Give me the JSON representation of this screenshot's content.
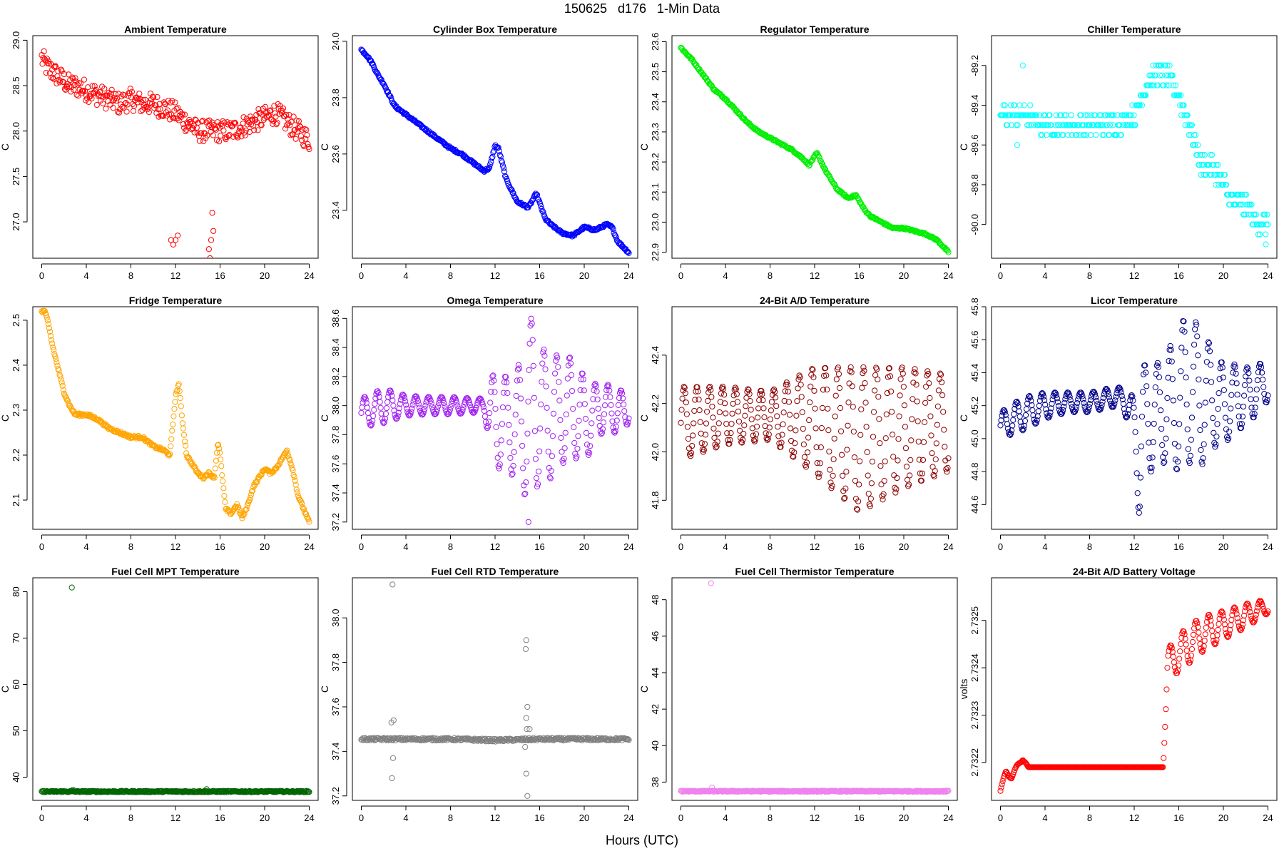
{
  "figure": {
    "title": "150625   d176   1-Min Data",
    "xlabel": "Hours (UTC)"
  },
  "chart_data": [
    {
      "type": "scatter",
      "title": "Ambient Temperature",
      "ylabel": "C",
      "color": "#ff0000",
      "xlim": [
        -0.8,
        24.8
      ],
      "ylim": [
        26.6,
        29.05
      ],
      "x_ticks": [
        0,
        4,
        8,
        12,
        16,
        20,
        24
      ],
      "y_ticks": [
        27.0,
        27.5,
        28.0,
        28.5,
        29.0
      ],
      "x": [
        0,
        0.5,
        1,
        1.5,
        2,
        2.5,
        3,
        4,
        5,
        6,
        7,
        8,
        9,
        10,
        11,
        12,
        13,
        14,
        15,
        16,
        17,
        18,
        19,
        20,
        21,
        22,
        23,
        24
      ],
      "y": [
        28.8,
        28.7,
        28.65,
        28.6,
        28.55,
        28.5,
        28.5,
        28.45,
        28.4,
        28.35,
        28.3,
        28.35,
        28.3,
        28.3,
        28.25,
        28.2,
        28.1,
        28.0,
        28.0,
        28.0,
        28.0,
        28.05,
        28.1,
        28.15,
        28.2,
        28.1,
        28.0,
        27.9
      ],
      "noise": 0.12,
      "outliers": [
        [
          11.6,
          26.8
        ],
        [
          11.8,
          26.75
        ],
        [
          12.0,
          26.8
        ],
        [
          12.2,
          26.85
        ],
        [
          15.0,
          26.7
        ],
        [
          15.2,
          26.8
        ],
        [
          15.3,
          27.1
        ],
        [
          15.4,
          26.9
        ],
        [
          15.1,
          26.6
        ]
      ]
    },
    {
      "type": "scatter",
      "title": "Cylinder Box Temperature",
      "ylabel": "C",
      "color": "#0000ff",
      "xlim": [
        -0.8,
        24.8
      ],
      "ylim": [
        23.23,
        24.02
      ],
      "x_ticks": [
        0,
        4,
        8,
        12,
        16,
        20,
        24
      ],
      "y_ticks": [
        23.4,
        23.6,
        23.8,
        24.0
      ],
      "x": [
        0,
        0.5,
        1,
        1.5,
        2,
        2.5,
        3,
        4,
        5,
        6,
        7,
        8,
        9,
        10,
        11,
        11.5,
        12,
        12.3,
        13,
        14,
        15,
        15.7,
        16.5,
        17,
        18,
        19,
        20,
        21,
        22,
        22.5,
        23,
        24
      ],
      "y": [
        23.97,
        23.95,
        23.92,
        23.88,
        23.85,
        23.81,
        23.77,
        23.74,
        23.71,
        23.68,
        23.65,
        23.62,
        23.6,
        23.57,
        23.54,
        23.55,
        23.63,
        23.62,
        23.51,
        23.43,
        23.41,
        23.46,
        23.37,
        23.35,
        23.32,
        23.31,
        23.34,
        23.33,
        23.35,
        23.34,
        23.29,
        23.25
      ],
      "noise": 0.004,
      "outliers": []
    },
    {
      "type": "scatter",
      "title": "Regulator Temperature",
      "ylabel": "C",
      "color": "#00ee00",
      "xlim": [
        -0.8,
        24.8
      ],
      "ylim": [
        22.88,
        23.62
      ],
      "x_ticks": [
        0,
        4,
        8,
        12,
        16,
        20,
        24
      ],
      "y_ticks": [
        22.9,
        23.0,
        23.1,
        23.2,
        23.3,
        23.4,
        23.5,
        23.6
      ],
      "x": [
        0,
        1,
        2,
        3,
        4,
        5,
        6,
        7,
        8,
        9,
        10,
        11,
        11.5,
        12.2,
        13,
        14,
        15,
        15.7,
        16.5,
        17,
        18,
        19,
        20,
        21,
        22,
        23,
        24
      ],
      "y": [
        23.58,
        23.54,
        23.49,
        23.44,
        23.41,
        23.37,
        23.33,
        23.3,
        23.28,
        23.26,
        23.24,
        23.21,
        23.19,
        23.23,
        23.17,
        23.11,
        23.08,
        23.09,
        23.04,
        23.02,
        23.0,
        22.98,
        22.98,
        22.97,
        22.96,
        22.94,
        22.9
      ],
      "noise": 0.003,
      "outliers": []
    },
    {
      "type": "scatter",
      "title": "Chiller Temperature",
      "ylabel": "C",
      "color": "#00ffff",
      "xlim": [
        -0.8,
        24.8
      ],
      "ylim": [
        -90.17,
        -89.05
      ],
      "x_ticks": [
        0,
        4,
        8,
        12,
        16,
        20,
        24
      ],
      "y_ticks": [
        -90.0,
        -89.8,
        -89.6,
        -89.4,
        -89.2
      ],
      "x": [
        0,
        2,
        4,
        6,
        8,
        10,
        12,
        13,
        14,
        15,
        16,
        17,
        17.5,
        18,
        19,
        20,
        21,
        22,
        23,
        24
      ],
      "y": [
        -89.45,
        -89.45,
        -89.5,
        -89.5,
        -89.5,
        -89.5,
        -89.45,
        -89.3,
        -89.25,
        -89.25,
        -89.35,
        -89.5,
        -89.6,
        -89.7,
        -89.7,
        -89.8,
        -89.9,
        -89.9,
        -90.0,
        -90.0
      ],
      "noise": 0.05,
      "quantum": 0.05,
      "outliers": [
        [
          23.8,
          -90.1
        ],
        [
          2.0,
          -89.2
        ],
        [
          1.5,
          -89.6
        ]
      ]
    },
    {
      "type": "scatter",
      "title": "Fridge Temperature",
      "ylabel": "C",
      "color": "#ffa500",
      "xlim": [
        -0.8,
        24.8
      ],
      "ylim": [
        2.035,
        2.53
      ],
      "x_ticks": [
        0,
        4,
        8,
        12,
        16,
        20,
        24
      ],
      "y_ticks": [
        2.1,
        2.2,
        2.3,
        2.4,
        2.5
      ],
      "x": [
        0,
        0.3,
        0.6,
        1,
        1.5,
        2,
        2.5,
        3,
        4,
        5,
        6,
        7,
        8,
        9,
        10,
        11,
        11.5,
        12,
        12.3,
        12.6,
        13,
        14,
        14.5,
        15,
        15.5,
        15.8,
        16,
        16.5,
        17,
        17.5,
        18,
        18.5,
        19,
        20,
        20.5,
        21,
        22,
        22.5,
        23,
        24
      ],
      "y": [
        2.52,
        2.52,
        2.49,
        2.44,
        2.39,
        2.34,
        2.31,
        2.29,
        2.29,
        2.28,
        2.26,
        2.25,
        2.24,
        2.24,
        2.22,
        2.21,
        2.2,
        2.33,
        2.36,
        2.28,
        2.2,
        2.16,
        2.15,
        2.16,
        2.15,
        2.23,
        2.2,
        2.08,
        2.07,
        2.09,
        2.06,
        2.09,
        2.13,
        2.17,
        2.16,
        2.17,
        2.21,
        2.17,
        2.11,
        2.05
      ],
      "noise": 0.003,
      "outliers": []
    },
    {
      "type": "scatter",
      "title": "Omega Temperature",
      "ylabel": "C",
      "color": "#a020f0",
      "xlim": [
        -0.8,
        24.8
      ],
      "ylim": [
        37.15,
        38.68
      ],
      "x_ticks": [
        0,
        4,
        8,
        12,
        16,
        20,
        24
      ],
      "y_ticks": [
        37.2,
        37.4,
        37.6,
        37.8,
        38.0,
        38.2,
        38.4,
        38.6
      ],
      "x": [
        0,
        2,
        4,
        6,
        8,
        10,
        11,
        12,
        13,
        14,
        15,
        15.5,
        16,
        16.5,
        17,
        18,
        19,
        20,
        21,
        22,
        23,
        24
      ],
      "y": [
        37.95,
        38.0,
        38.0,
        38.0,
        38.0,
        38.0,
        38.0,
        37.9,
        37.9,
        37.85,
        37.95,
        38.0,
        38.0,
        37.9,
        37.95,
        37.95,
        38.0,
        37.9,
        37.95,
        38.0,
        37.95,
        38.0
      ],
      "amp": [
        0.1,
        0.12,
        0.07,
        0.06,
        0.06,
        0.05,
        0.05,
        0.35,
        0.3,
        0.4,
        0.6,
        0.65,
        0.5,
        0.45,
        0.45,
        0.35,
        0.35,
        0.3,
        0.2,
        0.15,
        0.15,
        0.12
      ],
      "noise": 0.0,
      "outliers": [
        [
          15,
          37.2
        ]
      ]
    },
    {
      "type": "scatter",
      "title": "24-Bit A/D Temperature",
      "ylabel": "C",
      "color": "#8b0000",
      "xlim": [
        -0.8,
        24.8
      ],
      "ylim": [
        41.68,
        42.6
      ],
      "x_ticks": [
        0,
        4,
        8,
        12,
        16,
        20,
        24
      ],
      "y_ticks": [
        41.8,
        42.0,
        42.2,
        42.4
      ],
      "x": [
        0,
        4,
        8,
        12,
        16,
        20,
        24
      ],
      "y": [
        42.12,
        42.15,
        42.15,
        42.13,
        42.05,
        42.1,
        42.12
      ],
      "amp": [
        0.15,
        0.12,
        0.1,
        0.22,
        0.3,
        0.25,
        0.2
      ],
      "noise": 0.0,
      "outliers": []
    },
    {
      "type": "scatter",
      "title": "Licor Temperature",
      "ylabel": "C",
      "color": "#00008b",
      "xlim": [
        -0.8,
        24.8
      ],
      "ylim": [
        44.45,
        45.8
      ],
      "x_ticks": [
        0,
        4,
        8,
        12,
        16,
        20,
        24
      ],
      "y_ticks": [
        44.6,
        44.8,
        45.0,
        45.2,
        45.4,
        45.6,
        45.8
      ],
      "x": [
        0,
        2,
        4,
        6,
        8,
        10,
        11,
        12,
        12.5,
        13,
        14,
        15,
        16,
        16.5,
        17,
        18,
        19,
        20,
        21,
        22,
        23,
        24
      ],
      "y": [
        45.08,
        45.15,
        45.2,
        45.22,
        45.22,
        45.25,
        45.25,
        45.1,
        44.95,
        45.1,
        45.15,
        45.2,
        45.2,
        45.3,
        45.3,
        45.25,
        45.25,
        45.2,
        45.25,
        45.25,
        45.3,
        45.35
      ],
      "amp": [
        0.08,
        0.1,
        0.08,
        0.06,
        0.06,
        0.06,
        0.06,
        0.15,
        0.5,
        0.35,
        0.3,
        0.35,
        0.4,
        0.45,
        0.45,
        0.42,
        0.3,
        0.25,
        0.2,
        0.18,
        0.15,
        0.12
      ],
      "noise": 0.0,
      "outliers": []
    },
    {
      "type": "scatter",
      "title": "Fuel Cell MPT Temperature",
      "ylabel": "C",
      "color": "#006400",
      "xlim": [
        -0.8,
        24.8
      ],
      "ylim": [
        35,
        83
      ],
      "x_ticks": [
        0,
        4,
        8,
        12,
        16,
        20,
        24
      ],
      "y_ticks": [
        40,
        50,
        60,
        70,
        80
      ],
      "x": [
        0,
        4,
        8,
        12,
        16,
        20,
        24
      ],
      "y": [
        36.9,
        36.9,
        36.9,
        36.9,
        36.9,
        36.9,
        36.9
      ],
      "noise": 0.15,
      "outliers": [
        [
          2.7,
          80.9
        ],
        [
          2.8,
          37.3
        ],
        [
          14.8,
          37.4
        ]
      ]
    },
    {
      "type": "scatter",
      "title": "Fuel Cell RTD Temperature",
      "ylabel": "C",
      "color": "#808080",
      "xlim": [
        -0.8,
        24.8
      ],
      "ylim": [
        37.18,
        38.18
      ],
      "x_ticks": [
        0,
        4,
        8,
        12,
        16,
        20,
        24
      ],
      "y_ticks": [
        37.2,
        37.4,
        37.6,
        37.8,
        38.0
      ],
      "x": [
        0,
        4,
        8,
        12,
        16,
        20,
        24
      ],
      "y": [
        37.455,
        37.455,
        37.455,
        37.45,
        37.455,
        37.455,
        37.455
      ],
      "noise": 0.006,
      "outliers": [
        [
          2.8,
          38.15
        ],
        [
          2.7,
          37.53
        ],
        [
          2.9,
          37.54
        ],
        [
          2.75,
          37.28
        ],
        [
          2.85,
          37.37
        ],
        [
          14.8,
          37.9
        ],
        [
          14.75,
          37.86
        ],
        [
          14.9,
          37.6
        ],
        [
          14.8,
          37.55
        ],
        [
          14.85,
          37.5
        ],
        [
          14.9,
          37.2
        ],
        [
          14.8,
          37.3
        ],
        [
          15,
          37.45
        ],
        [
          15.1,
          37.5
        ],
        [
          14.7,
          37.42
        ]
      ]
    },
    {
      "type": "scatter",
      "title": "Fuel Cell Thermistor Temperature",
      "ylabel": "C",
      "color": "#ee82ee",
      "xlim": [
        -0.8,
        24.8
      ],
      "ylim": [
        37,
        49.2
      ],
      "x_ticks": [
        0,
        4,
        8,
        12,
        16,
        20,
        24
      ],
      "y_ticks": [
        38,
        40,
        42,
        44,
        46,
        48
      ],
      "x": [
        0,
        4,
        8,
        12,
        16,
        20,
        24
      ],
      "y": [
        37.5,
        37.5,
        37.5,
        37.5,
        37.5,
        37.5,
        37.5
      ],
      "noise": 0.03,
      "outliers": [
        [
          2.7,
          48.9
        ],
        [
          2.8,
          37.7
        ]
      ]
    },
    {
      "type": "scatter",
      "title": "24-Bit A/D Battery Voltage",
      "ylabel": "volts",
      "color": "#ff0000",
      "xlim": [
        -0.8,
        24.8
      ],
      "ylim": [
        2.73212,
        2.73259
      ],
      "x_ticks": [
        0,
        4,
        8,
        12,
        16,
        20,
        24
      ],
      "y_ticks": [
        2.7322,
        2.7323,
        2.7324,
        2.7325
      ],
      "x": [
        0,
        0.5,
        1,
        1.5,
        2,
        2.5,
        3,
        6,
        9,
        12,
        14.6,
        15,
        16,
        18,
        20,
        22,
        24
      ],
      "y": [
        2.73214,
        2.73218,
        2.73217,
        2.73219,
        2.73221,
        2.73219,
        2.73219,
        2.73219,
        2.73219,
        2.73219,
        2.73219,
        2.73241,
        2.73243,
        2.73247,
        2.73249,
        2.73251,
        2.73253
      ],
      "amp": [
        5e-06,
        5e-06,
        5e-06,
        5e-06,
        5e-06,
        0.0,
        0.0,
        0.0,
        0.0,
        0.0,
        0.0,
        3e-05,
        4e-05,
        3.8e-05,
        3e-05,
        2.5e-05,
        1.5e-05
      ],
      "noise": 0.0,
      "outliers": []
    }
  ]
}
